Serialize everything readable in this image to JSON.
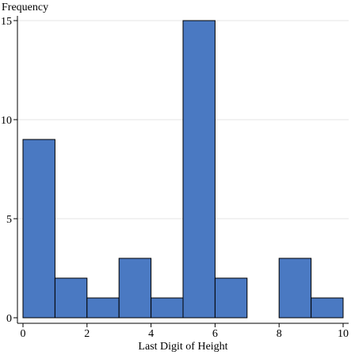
{
  "chart_data": {
    "type": "bar",
    "xlabel": "Last Digit of Height",
    "ylabel": "Frequency",
    "bins": [
      {
        "x0": 0,
        "x1": 1,
        "count": 9
      },
      {
        "x0": 1,
        "x1": 2,
        "count": 2
      },
      {
        "x0": 2,
        "x1": 3,
        "count": 1
      },
      {
        "x0": 3,
        "x1": 4,
        "count": 3
      },
      {
        "x0": 4,
        "x1": 5,
        "count": 1
      },
      {
        "x0": 5,
        "x1": 6,
        "count": 15
      },
      {
        "x0": 6,
        "x1": 7,
        "count": 2
      },
      {
        "x0": 7,
        "x1": 8,
        "count": 0
      },
      {
        "x0": 8,
        "x1": 9,
        "count": 3
      },
      {
        "x0": 9,
        "x1": 10,
        "count": 1
      }
    ],
    "xlim": [
      0,
      10
    ],
    "ylim": [
      0,
      15
    ],
    "xticks": [
      0,
      2,
      4,
      6,
      8,
      10
    ],
    "yticks": [
      0,
      5,
      10,
      15
    ],
    "grid": "horizontal",
    "bar_color": "#4a79c2",
    "bar_edge_color": "#000000"
  }
}
